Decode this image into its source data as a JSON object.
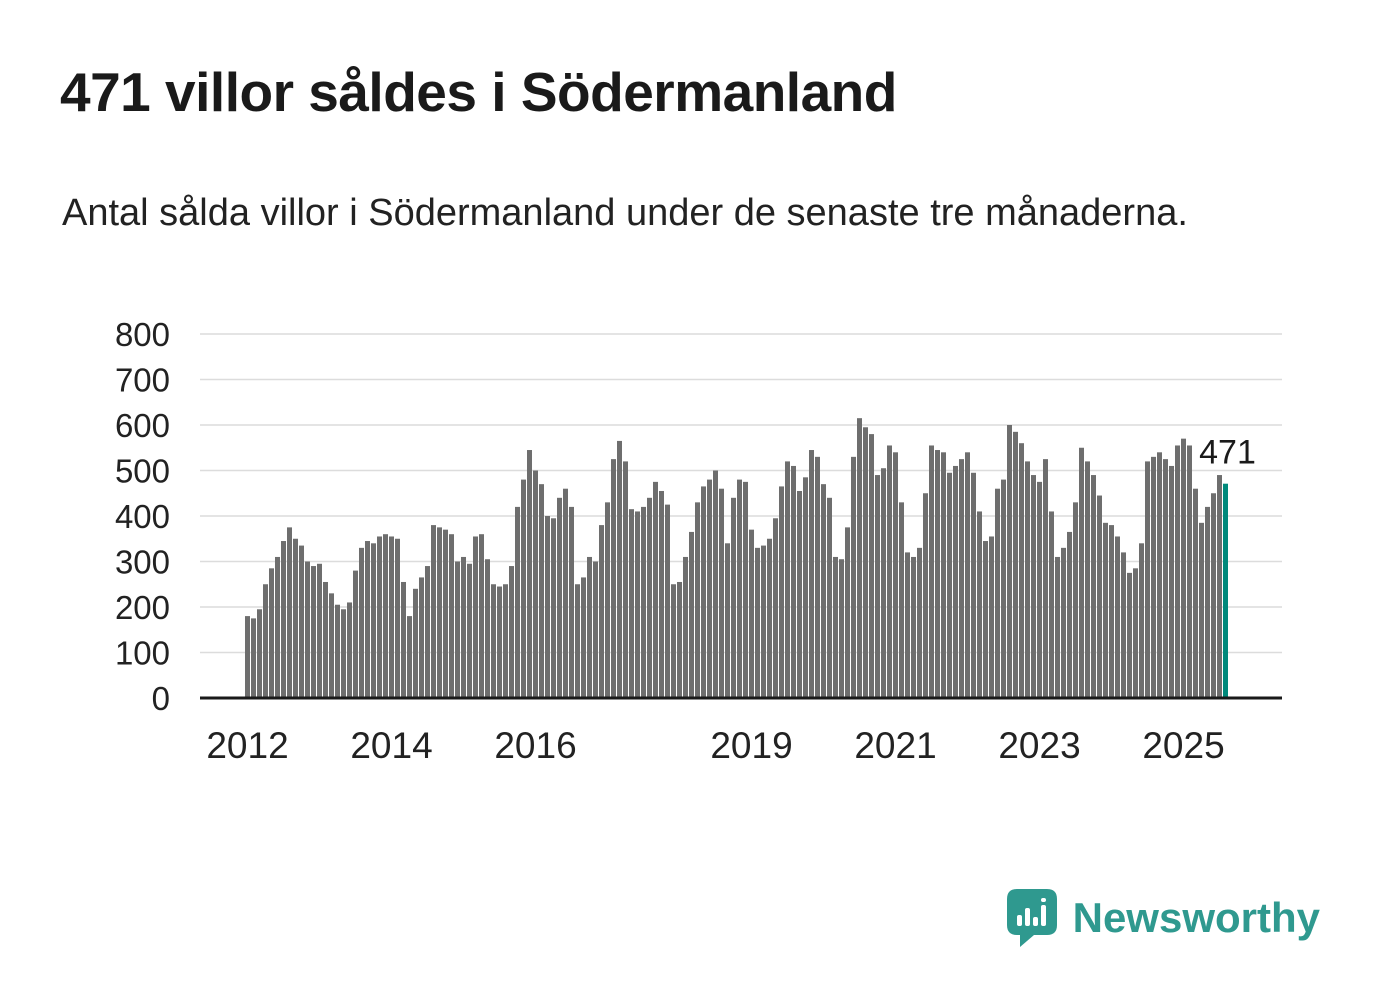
{
  "chart_data": {
    "type": "bar",
    "title": "471 villor såldes i Södermanland",
    "subtitle": "Antal sålda villor i Södermanland under de senaste tre månaderna.",
    "x_unit": "month",
    "x_start": "2012-01",
    "ylim": [
      0,
      800
    ],
    "yticks": [
      0,
      100,
      200,
      300,
      400,
      500,
      600,
      700,
      800
    ],
    "xticks": [
      {
        "label": "2012",
        "index": 0
      },
      {
        "label": "2014",
        "index": 24
      },
      {
        "label": "2016",
        "index": 48
      },
      {
        "label": "2019",
        "index": 84
      },
      {
        "label": "2021",
        "index": 108
      },
      {
        "label": "2023",
        "index": 132
      },
      {
        "label": "2025",
        "index": 156
      }
    ],
    "values": [
      180,
      175,
      195,
      250,
      285,
      310,
      345,
      375,
      350,
      335,
      300,
      290,
      295,
      255,
      230,
      205,
      195,
      210,
      280,
      330,
      345,
      340,
      355,
      360,
      355,
      350,
      255,
      180,
      240,
      265,
      290,
      380,
      375,
      370,
      360,
      300,
      310,
      295,
      355,
      360,
      305,
      250,
      245,
      250,
      290,
      420,
      480,
      545,
      500,
      470,
      400,
      395,
      440,
      460,
      420,
      250,
      265,
      310,
      300,
      380,
      430,
      525,
      565,
      520,
      415,
      410,
      420,
      440,
      475,
      455,
      425,
      250,
      255,
      310,
      365,
      430,
      465,
      480,
      500,
      460,
      340,
      440,
      480,
      475,
      370,
      330,
      335,
      350,
      395,
      465,
      520,
      510,
      455,
      485,
      545,
      530,
      470,
      440,
      310,
      305,
      375,
      530,
      615,
      595,
      580,
      490,
      505,
      555,
      540,
      430,
      320,
      310,
      330,
      450,
      555,
      545,
      540,
      495,
      510,
      525,
      540,
      495,
      410,
      345,
      355,
      460,
      480,
      600,
      585,
      560,
      520,
      490,
      475,
      525,
      410,
      310,
      330,
      365,
      430,
      550,
      520,
      490,
      445,
      385,
      380,
      355,
      320,
      275,
      285,
      340,
      520,
      530,
      540,
      525,
      510,
      555,
      570,
      555,
      460,
      385,
      420,
      450,
      490,
      471
    ],
    "highlight_last": true,
    "annotation": {
      "text": "471",
      "target": "last-bar"
    },
    "grid": true,
    "legend": "none",
    "colors": {
      "bar": "#6e6e6e",
      "highlight": "#00897b",
      "gridline": "#dcdcdc",
      "axis": "#1a1a1a",
      "label": "#222222"
    }
  },
  "footer": {
    "brand": "Newsworthy",
    "brand_color": "#2f998f",
    "logo_icon": "newsworthy-logo-icon"
  }
}
